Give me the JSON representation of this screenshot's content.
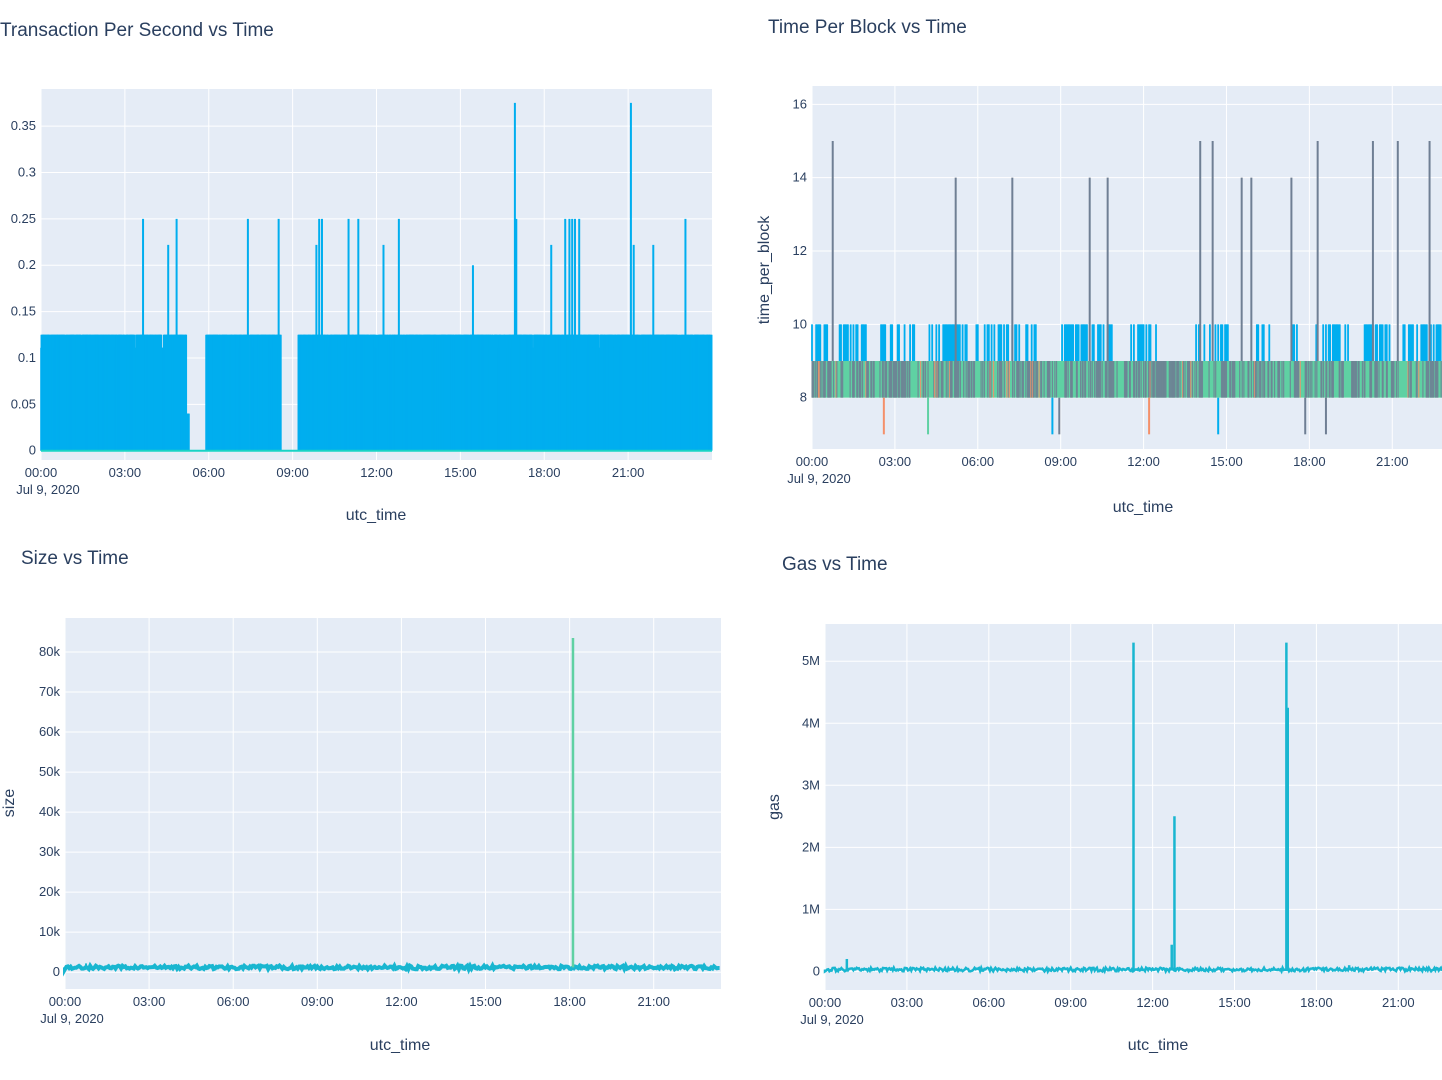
{
  "chart_data": [
    {
      "type": "line",
      "title": "Transaction Per Second vs Time",
      "xlabel": "utc_time",
      "ylabel": "",
      "x_ticks": [
        "00:00",
        "03:00",
        "06:00",
        "09:00",
        "12:00",
        "15:00",
        "18:00",
        "21:00"
      ],
      "x_date_label": "Jul 9, 2020",
      "y_ticks": [
        "0",
        "0.05",
        "0.1",
        "0.15",
        "0.2",
        "0.25",
        "0.3",
        "0.35"
      ],
      "ylim": [
        -0.01,
        0.39
      ],
      "xlim_hours": [
        0,
        24
      ],
      "grid": true,
      "colors": {
        "bars": "#00aeef",
        "baseline": "#19d3c5"
      },
      "band_low": 0.111,
      "band_high": 0.125,
      "gaps_hours": [
        [
          5.3,
          5.7
        ],
        [
          5.7,
          5.9
        ],
        [
          8.6,
          9.2
        ]
      ],
      "low_segment_hours": [
        5.2,
        5.35
      ],
      "low_segment_value": 0.04,
      "spikes": [
        {
          "x": 3.65,
          "y": 0.25
        },
        {
          "x": 4.55,
          "y": 0.222
        },
        {
          "x": 4.85,
          "y": 0.25
        },
        {
          "x": 7.4,
          "y": 0.25
        },
        {
          "x": 8.5,
          "y": 0.25
        },
        {
          "x": 9.85,
          "y": 0.222
        },
        {
          "x": 9.95,
          "y": 0.25
        },
        {
          "x": 10.05,
          "y": 0.25
        },
        {
          "x": 11.0,
          "y": 0.25
        },
        {
          "x": 11.35,
          "y": 0.25
        },
        {
          "x": 12.25,
          "y": 0.222
        },
        {
          "x": 12.8,
          "y": 0.25
        },
        {
          "x": 15.45,
          "y": 0.2
        },
        {
          "x": 16.95,
          "y": 0.375
        },
        {
          "x": 17.0,
          "y": 0.25
        },
        {
          "x": 18.25,
          "y": 0.222
        },
        {
          "x": 18.75,
          "y": 0.25
        },
        {
          "x": 18.9,
          "y": 0.25
        },
        {
          "x": 19.0,
          "y": 0.25
        },
        {
          "x": 19.1,
          "y": 0.25
        },
        {
          "x": 19.25,
          "y": 0.25
        },
        {
          "x": 21.1,
          "y": 0.375
        },
        {
          "x": 21.2,
          "y": 0.222
        },
        {
          "x": 21.9,
          "y": 0.222
        },
        {
          "x": 23.05,
          "y": 0.25
        }
      ]
    },
    {
      "type": "line",
      "title": "Time Per Block vs Time",
      "xlabel": "utc_time",
      "ylabel": "time_per_block",
      "x_ticks": [
        "00:00",
        "03:00",
        "06:00",
        "09:00",
        "12:00",
        "15:00",
        "18:00",
        "21:00"
      ],
      "x_date_label": "Jul 9, 2020",
      "y_ticks": [
        "8",
        "10",
        "12",
        "14",
        "16"
      ],
      "ylim": [
        6.6,
        16.5
      ],
      "xlim_hours": [
        0,
        22.8
      ],
      "grid": true,
      "colors": {
        "blue": "#00aeef",
        "green": "#5fd1a3",
        "gray": "#6f7f94",
        "orange": "#f4906a"
      },
      "band_blue_high": 10,
      "band_top": 9,
      "band_bottom": 8,
      "gray_spikes": [
        {
          "x": 0.75,
          "y": 15
        },
        {
          "x": 5.2,
          "y": 14
        },
        {
          "x": 7.25,
          "y": 14
        },
        {
          "x": 10.05,
          "y": 14
        },
        {
          "x": 10.7,
          "y": 14
        },
        {
          "x": 14.05,
          "y": 15
        },
        {
          "x": 14.5,
          "y": 15
        },
        {
          "x": 15.55,
          "y": 14
        },
        {
          "x": 15.9,
          "y": 14
        },
        {
          "x": 17.35,
          "y": 14
        },
        {
          "x": 18.3,
          "y": 15
        },
        {
          "x": 20.3,
          "y": 15
        },
        {
          "x": 21.2,
          "y": 15
        },
        {
          "x": 22.35,
          "y": 15
        }
      ],
      "down_spikes": [
        {
          "x": 2.6,
          "y": 7,
          "color": "orange"
        },
        {
          "x": 4.2,
          "y": 7,
          "color": "green"
        },
        {
          "x": 8.7,
          "y": 7,
          "color": "blue"
        },
        {
          "x": 8.95,
          "y": 7,
          "color": "gray"
        },
        {
          "x": 12.2,
          "y": 7,
          "color": "orange"
        },
        {
          "x": 14.7,
          "y": 7,
          "color": "blue"
        },
        {
          "x": 17.85,
          "y": 7,
          "color": "gray"
        },
        {
          "x": 18.6,
          "y": 7,
          "color": "gray"
        }
      ],
      "blue_gaps_hours": [
        [
          0.6,
          1.0
        ],
        [
          2.0,
          2.4
        ],
        [
          3.7,
          4.2
        ],
        [
          5.6,
          5.9
        ],
        [
          8.1,
          8.9
        ],
        [
          11.1,
          11.5
        ],
        [
          12.6,
          13.9
        ],
        [
          15.1,
          16.0
        ],
        [
          16.6,
          17.3
        ],
        [
          17.6,
          18.2
        ],
        [
          19.5,
          20.0
        ],
        [
          21.0,
          21.4
        ]
      ]
    },
    {
      "type": "line",
      "title": "Size vs Time",
      "xlabel": "utc_time",
      "ylabel": "size",
      "x_ticks": [
        "00:00",
        "03:00",
        "06:00",
        "09:00",
        "12:00",
        "15:00",
        "18:00",
        "21:00"
      ],
      "x_date_label": "Jul 9, 2020",
      "y_ticks": [
        "0",
        "10k",
        "20k",
        "30k",
        "40k",
        "50k",
        "60k",
        "70k",
        "80k"
      ],
      "ylim": [
        -4200,
        88500
      ],
      "xlim_hours": [
        0,
        23.4
      ],
      "grid": true,
      "colors": {
        "line": "#19b6d0",
        "spike": "#5fd1a3"
      },
      "baseline_value": 1200,
      "spikes": [
        {
          "x": 18.12,
          "y": 83500
        },
        {
          "x": 0.75,
          "y": 2200
        }
      ]
    },
    {
      "type": "line",
      "title": "Gas vs Time",
      "xlabel": "utc_time",
      "ylabel": "gas",
      "x_ticks": [
        "00:00",
        "03:00",
        "06:00",
        "09:00",
        "12:00",
        "15:00",
        "18:00",
        "21:00"
      ],
      "x_date_label": "Jul 9, 2020",
      "y_ticks": [
        "0",
        "1M",
        "2M",
        "3M",
        "4M",
        "5M"
      ],
      "ylim": [
        -300000,
        5600000
      ],
      "xlim_hours": [
        0,
        22.6
      ],
      "grid": true,
      "colors": {
        "line": "#19b6d0"
      },
      "baseline_value": 30000,
      "spikes": [
        {
          "x": 0.8,
          "y": 200000
        },
        {
          "x": 11.3,
          "y": 5300000
        },
        {
          "x": 12.7,
          "y": 430000
        },
        {
          "x": 12.8,
          "y": 2500000
        },
        {
          "x": 16.9,
          "y": 5300000
        },
        {
          "x": 16.95,
          "y": 4250000
        },
        {
          "x": 19.2,
          "y": 100000
        }
      ]
    }
  ]
}
